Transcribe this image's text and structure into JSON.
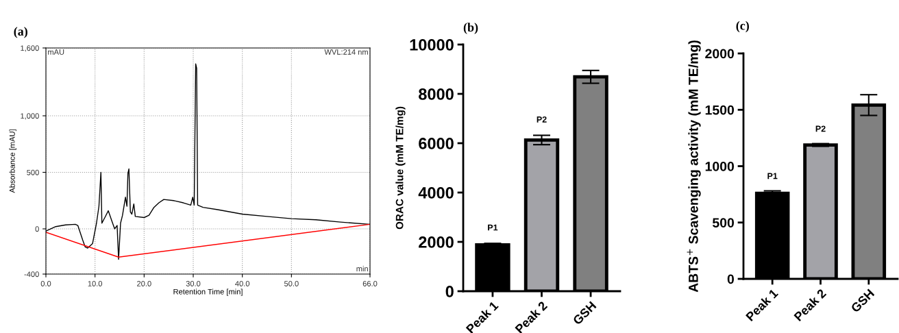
{
  "chart_data": [
    {
      "type": "line",
      "title": "(a)",
      "xlabel": "Retention Time [min]",
      "ylabel": "Absorbance [mAU]",
      "annotations": [
        "mAU",
        "WVL:214 nm",
        "min"
      ],
      "xlim": [
        0,
        66
      ],
      "ylim": [
        -400,
        1600
      ],
      "xticks": [
        {
          "value": 0,
          "label": "0.0"
        },
        {
          "value": 10,
          "label": "10.0"
        },
        {
          "value": 20,
          "label": "20.0"
        },
        {
          "value": 30,
          "label": "30.0"
        },
        {
          "value": 40,
          "label": "40.0"
        },
        {
          "value": 50,
          "label": "50.0"
        },
        {
          "value": 66,
          "label": "66.0"
        }
      ],
      "yticks": [
        -400,
        0,
        500,
        {
          "value": 1000,
          "label": "1,000"
        },
        {
          "value": 1600,
          "label": "1,600"
        }
      ],
      "grid": true,
      "line_style": "solid",
      "series": [
        {
          "color": "#000000",
          "x": [
            0,
            2,
            4,
            6,
            6.5,
            7.5,
            8,
            8.5,
            9.5,
            10.3,
            10.8,
            11.2,
            11.4,
            12,
            12.7,
            13.5,
            14,
            14.5,
            14.8,
            15.2,
            15.6,
            16.2,
            16.5,
            16.7,
            16.9,
            17.2,
            17.5,
            17.9,
            18.2,
            20,
            21,
            22,
            23,
            24,
            26,
            28,
            29.5,
            29.9,
            30.2,
            30.5,
            30.7,
            30.9,
            32,
            35,
            40,
            45,
            50,
            55,
            60,
            66
          ],
          "values": [
            -20,
            20,
            35,
            40,
            30,
            -100,
            -160,
            -170,
            -130,
            50,
            200,
            500,
            50,
            100,
            160,
            60,
            0,
            30,
            -270,
            50,
            120,
            280,
            200,
            490,
            530,
            150,
            130,
            220,
            110,
            100,
            120,
            190,
            230,
            260,
            250,
            230,
            210,
            280,
            210,
            1460,
            1420,
            210,
            190,
            170,
            130,
            110,
            90,
            80,
            60,
            40
          ]
        },
        {
          "color": "#ff0000",
          "x": [
            0,
            14.8,
            66
          ],
          "values": [
            -30,
            -250,
            40
          ]
        }
      ]
    },
    {
      "type": "bar",
      "title": "(b)",
      "ylabel": "ORAC value (mM TE/mg)",
      "categories": [
        "Peak 1",
        "Peak 2",
        "GSH"
      ],
      "values": [
        1880,
        6130,
        8690
      ],
      "errors": [
        60,
        190,
        260
      ],
      "colors": [
        "#000000",
        "#a3a3a8",
        "#808080"
      ],
      "ylim": [
        0,
        10000
      ],
      "yticks": [
        0,
        2000,
        4000,
        6000,
        8000,
        10000
      ],
      "annotations": [
        "P1",
        "P2"
      ]
    },
    {
      "type": "bar",
      "title": "(c)",
      "ylabel": "ABTS$^{+}$ Scavenging activity (mM TE/mg)",
      "categories": [
        "Peak 1",
        "Peak 2",
        "GSH"
      ],
      "values": [
        759,
        1188,
        1542
      ],
      "errors": [
        22,
        12,
        92
      ],
      "colors": [
        "#000000",
        "#a3a3a8",
        "#808080"
      ],
      "ylim": [
        0,
        2000
      ],
      "yticks": [
        0,
        500,
        1000,
        1500,
        2000
      ],
      "annotations": [
        "P1",
        "P2"
      ]
    }
  ]
}
